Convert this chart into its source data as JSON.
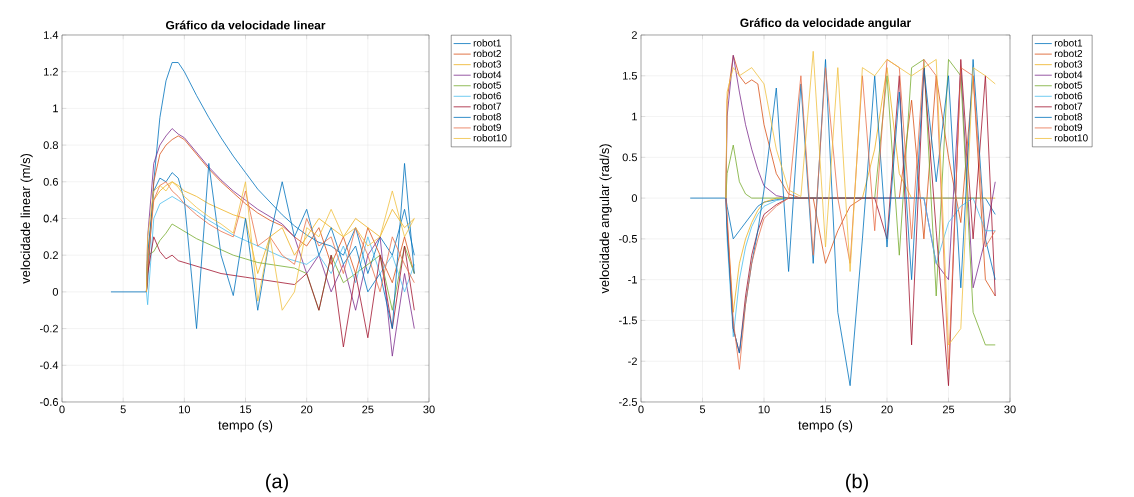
{
  "chart_data": [
    {
      "type": "line",
      "title": "Gráfico da velocidade linear",
      "xlabel": "tempo (s)",
      "ylabel": "velocidade linear (m/s)",
      "annotations": [
        "(a)"
      ],
      "x": [
        4,
        6.9,
        7,
        7.5,
        8,
        8.5,
        9,
        9.5,
        10,
        11,
        12,
        13,
        14,
        15,
        16,
        17,
        18,
        19,
        20,
        21,
        22,
        23,
        24,
        25,
        26,
        27,
        28,
        28.8
      ],
      "xlim": [
        0,
        30
      ],
      "xticks": [
        0,
        5,
        10,
        15,
        20,
        25,
        30
      ],
      "ylim": [
        -0.6,
        1.4
      ],
      "yticks": [
        -0.6,
        -0.4,
        -0.2,
        0,
        0.2,
        0.4,
        0.6,
        0.8,
        1,
        1.2,
        1.4
      ],
      "grid": true,
      "legend": "right",
      "line_style": "solid",
      "series": [
        {
          "name": "robot1",
          "color": "#0072bd",
          "values": [
            0,
            0,
            0.05,
            0.6,
            0.95,
            1.15,
            1.25,
            1.25,
            1.2,
            1.07,
            0.95,
            0.84,
            0.74,
            0.65,
            0.56,
            0.49,
            0.42,
            0.36,
            0.31,
            0.27,
            0.25,
            0.2,
            0.35,
            0.1,
            0.3,
            0.2,
            0.45,
            0.2
          ]
        },
        {
          "name": "robot2",
          "color": "#d95319",
          "values": [
            null,
            0,
            0.1,
            0.6,
            0.75,
            0.8,
            0.83,
            0.85,
            0.83,
            0.75,
            0.67,
            0.6,
            0.54,
            0.48,
            0.43,
            0.39,
            0.36,
            0.3,
            0.25,
            0.35,
            0.15,
            0.3,
            0.1,
            0.35,
            0.2,
            0.05,
            0.3,
            0.1
          ]
        },
        {
          "name": "robot3",
          "color": "#edb120",
          "values": [
            null,
            0,
            0.2,
            0.5,
            0.55,
            0.58,
            0.6,
            0.58,
            0.55,
            0.52,
            0.48,
            0.45,
            0.42,
            0.4,
            0.1,
            0.3,
            0.35,
            0.2,
            0.3,
            0.4,
            0.35,
            0.3,
            0.4,
            0.35,
            0.3,
            0.45,
            0.35,
            0.4
          ]
        },
        {
          "name": "robot4",
          "color": "#7e2f8e",
          "values": [
            null,
            0,
            0.3,
            0.7,
            0.8,
            0.85,
            0.89,
            0.86,
            0.84,
            0.76,
            0.68,
            0.61,
            0.55,
            0.5,
            0.45,
            0.41,
            0.37,
            0.3,
            0.1,
            0.2,
            0,
            0.15,
            -0.1,
            0.2,
            0.3,
            -0.35,
            0.1,
            -0.2
          ]
        },
        {
          "name": "robot5",
          "color": "#77ac30",
          "values": [
            null,
            0,
            0.2,
            0.22,
            0.28,
            0.32,
            0.37,
            0.35,
            0.33,
            0.29,
            0.26,
            0.23,
            0.2,
            0.18,
            0.16,
            0.15,
            0.14,
            0.13,
            0.1,
            -0.1,
            0.2,
            0.05,
            0.1,
            0.15,
            0.2,
            -0.1,
            0.25,
            0.1
          ]
        },
        {
          "name": "robot6",
          "color": "#4dbeee",
          "values": [
            null,
            0,
            -0.07,
            0.4,
            0.48,
            0.5,
            0.52,
            0.5,
            0.48,
            0.44,
            0.39,
            0.35,
            0.31,
            0.28,
            0.25,
            0.22,
            0.19,
            0.17,
            0.15,
            0.2,
            0.1,
            0.25,
            0.05,
            0.3,
            0.1,
            0.2,
            0,
            0.15
          ]
        },
        {
          "name": "robot7",
          "color": "#a2142f",
          "values": [
            null,
            0,
            0.1,
            0.3,
            0.22,
            0.18,
            0.2,
            0.17,
            0.16,
            0.14,
            0.12,
            0.1,
            0.09,
            0.08,
            0.07,
            0.06,
            0.05,
            0.04,
            0.1,
            -0.1,
            0.2,
            -0.3,
            0.1,
            -0.25,
            0.2,
            -0.2,
            0.25,
            -0.1
          ]
        },
        {
          "name": "robot8",
          "color": "#0072bd",
          "values": [
            null,
            0,
            0.2,
            0.55,
            0.62,
            0.6,
            0.65,
            0.62,
            0.5,
            -0.2,
            0.7,
            0.2,
            -0.02,
            0.4,
            -0.1,
            0.3,
            0.6,
            0.3,
            0.45,
            0.2,
            0.35,
            0.15,
            0.25,
            0,
            0.1,
            -0.2,
            0.7,
            0.1
          ]
        },
        {
          "name": "robot9",
          "color": "#e8704a",
          "values": [
            null,
            0,
            0.15,
            0.5,
            0.58,
            0.6,
            0.55,
            0.52,
            0.48,
            0.42,
            0.37,
            0.33,
            0.3,
            0.55,
            0.25,
            0.3,
            0.2,
            0.15,
            0.4,
            0.25,
            0.3,
            0.1,
            0.35,
            0.2,
            0,
            0.3,
            0.15,
            0.05
          ]
        },
        {
          "name": "robot10",
          "color": "#f0c040",
          "values": [
            null,
            0,
            0.3,
            0.55,
            0.58,
            0.55,
            0.6,
            0.57,
            0.52,
            0.46,
            0.41,
            0.37,
            0.32,
            0.6,
            -0.05,
            0.3,
            -0.1,
            0,
            0.35,
            0.3,
            0.45,
            0.3,
            0.35,
            0.25,
            0.3,
            0.55,
            0.3,
            0.4
          ]
        }
      ]
    },
    {
      "type": "line",
      "title": "Gráfico da velocidade angular",
      "xlabel": "tempo (s)",
      "ylabel": "velocidade angular (rad/s)",
      "annotations": [
        "(b)"
      ],
      "x": [
        4,
        6.9,
        7,
        7.5,
        8,
        8.5,
        9,
        9.5,
        10,
        11,
        12,
        13,
        14,
        15,
        16,
        17,
        18,
        19,
        20,
        21,
        22,
        23,
        24,
        25,
        26,
        27,
        28,
        28.8
      ],
      "xlim": [
        0,
        30
      ],
      "xticks": [
        0,
        5,
        10,
        15,
        20,
        25,
        30
      ],
      "ylim": [
        -2.5,
        2
      ],
      "yticks": [
        -2.5,
        -2,
        -1.5,
        -1,
        -0.5,
        0,
        0.5,
        1,
        1.5,
        2
      ],
      "grid": true,
      "legend": "right",
      "line_style": "solid",
      "series": [
        {
          "name": "robot1",
          "color": "#0072bd",
          "values": [
            0,
            0,
            -0.1,
            -0.5,
            -0.4,
            -0.3,
            -0.2,
            -0.1,
            -0.05,
            -0.02,
            0,
            0,
            0,
            0,
            0,
            0,
            0,
            0,
            0,
            0,
            0,
            0,
            0,
            0,
            0,
            0,
            0,
            -0.2
          ]
        },
        {
          "name": "robot2",
          "color": "#d95319",
          "values": [
            null,
            0,
            1.2,
            1.75,
            1.5,
            1.4,
            1.45,
            1.4,
            0.9,
            0.3,
            0.05,
            0,
            0,
            -0.8,
            -0.4,
            -0.1,
            0,
            0,
            0,
            0,
            1.2,
            -0.5,
            1.5,
            0.5,
            -0.3,
            1.5,
            -1,
            -1.2
          ]
        },
        {
          "name": "robot3",
          "color": "#edb120",
          "values": [
            null,
            null,
            -0.3,
            -1.4,
            -0.8,
            -0.5,
            -0.3,
            -0.15,
            -0.05,
            0,
            0,
            0,
            0,
            0,
            0,
            0,
            0,
            0.6,
            1.6,
            0.3,
            0,
            0,
            0,
            0,
            0,
            0,
            0,
            0
          ]
        },
        {
          "name": "robot4",
          "color": "#7e2f8e",
          "values": [
            null,
            0,
            1,
            1.75,
            1.3,
            0.9,
            0.6,
            0.35,
            0.15,
            0.03,
            0,
            0,
            0,
            0,
            0,
            0,
            0,
            0,
            0,
            0,
            0,
            0,
            -0.8,
            -1,
            1.6,
            -1.1,
            -0.5,
            0.2
          ]
        },
        {
          "name": "robot5",
          "color": "#77ac30",
          "values": [
            null,
            0,
            0.3,
            0.65,
            0.2,
            0.05,
            0,
            0,
            0,
            0,
            0,
            0,
            0,
            0,
            0,
            0,
            0,
            0,
            1.5,
            -0.7,
            1.6,
            1.7,
            -1.2,
            1.7,
            1.5,
            -1.4,
            -1.8,
            -1.8
          ]
        },
        {
          "name": "robot6",
          "color": "#4dbeee",
          "values": [
            null,
            0,
            -0.5,
            -1.7,
            -1,
            -0.6,
            -0.35,
            -0.2,
            -0.1,
            -0.03,
            0,
            0,
            0,
            0,
            0,
            0,
            0,
            0,
            0,
            0,
            0,
            0,
            -0.8,
            -0.3,
            -0.1,
            0,
            -0.4,
            -0.4
          ]
        },
        {
          "name": "robot7",
          "color": "#a2142f",
          "values": [
            null,
            0,
            -0.3,
            -1.6,
            -1.9,
            -1.2,
            -0.7,
            -0.4,
            -0.2,
            -0.08,
            0,
            0,
            0,
            null,
            0,
            null,
            null,
            0,
            -0.5,
            1.5,
            -1.8,
            1.6,
            -0.4,
            -2.3,
            1.7,
            -0.5,
            1.5,
            -1.2
          ]
        },
        {
          "name": "robot8",
          "color": "#0072bd",
          "values": [
            null,
            0,
            -0.4,
            -1.6,
            -1.9,
            -1.3,
            -0.8,
            -0.4,
            0.1,
            1.35,
            -0.9,
            1.4,
            -0.8,
            1.7,
            -1.4,
            -2.3,
            -0.5,
            1.5,
            -0.6,
            1.3,
            -1,
            1.6,
            0.2,
            1.5,
            -1.1,
            1.7,
            -0.5,
            -1
          ]
        },
        {
          "name": "robot9",
          "color": "#e8704a",
          "values": [
            null,
            0,
            -0.2,
            -1.5,
            -2.1,
            -1.3,
            -0.8,
            -0.5,
            -0.25,
            -0.1,
            0,
            1.5,
            -0.7,
            1.6,
            0,
            -0.8,
            1.5,
            -0.4,
            1.7,
            1.6,
            -0.5,
            1.7,
            1.5,
            -2.1,
            1.6,
            1.5,
            -0.6,
            -0.4
          ]
        },
        {
          "name": "robot10",
          "color": "#f0c040",
          "values": [
            null,
            0,
            1.3,
            1.6,
            1.5,
            1.55,
            1.6,
            1.5,
            1.4,
            0.6,
            0.1,
            0.02,
            1.8,
            -0.6,
            1.6,
            -0.9,
            1.6,
            1.5,
            1.7,
            1.6,
            1.5,
            1.6,
            1.7,
            -1.8,
            -1.6,
            1.6,
            1.5,
            1.4
          ]
        }
      ]
    }
  ]
}
